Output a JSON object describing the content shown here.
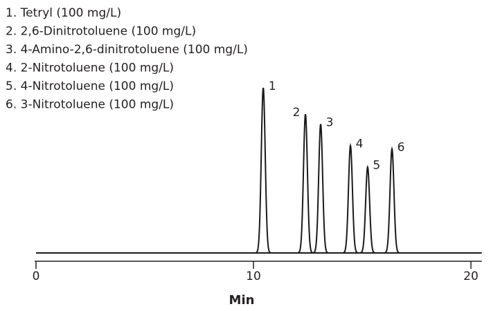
{
  "chart_data": {
    "type": "chromatogram",
    "legend": [
      "1. Tetryl (100 mg/L)",
      "2. 2,6-Dinitrotoluene (100 mg/L)",
      "3. 4-Amino-2,6-dinitrotoluene (100 mg/L)",
      "4. 2-Nitrotoluene (100 mg/L)",
      "5. 4-Nitrotoluene (100 mg/L)",
      "6. 3-Nitrotoluene (100 mg/L)"
    ],
    "peaks": [
      {
        "label": "1",
        "time": 10.45,
        "height": 100
      },
      {
        "label": "2",
        "time": 12.39,
        "height": 84
      },
      {
        "label": "3",
        "time": 13.09,
        "height": 78
      },
      {
        "label": "4",
        "time": 14.46,
        "height": 65
      },
      {
        "label": "5",
        "time": 15.25,
        "height": 52
      },
      {
        "label": "6",
        "time": 16.37,
        "height": 63
      }
    ],
    "color": "#1a1a1a",
    "xlabel": "Min",
    "xlim": [
      0,
      20.5
    ],
    "xticks": [
      0,
      10,
      20
    ],
    "ylim": [
      0,
      100
    ]
  }
}
